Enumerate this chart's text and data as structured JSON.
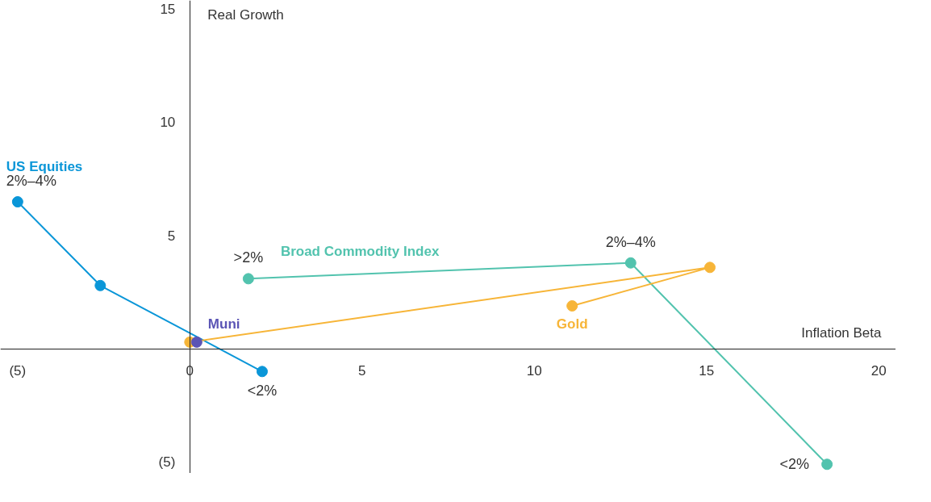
{
  "chart_data": {
    "type": "line",
    "xlabel": "Inflation Beta",
    "ylabel": "Real Growth",
    "marker": "circle",
    "xlim": [
      -5.5,
      20.5
    ],
    "ylim": [
      -5.5,
      15.4
    ],
    "xticks": [
      {
        "value": -5,
        "label": "(5)"
      },
      0,
      5,
      10,
      15,
      20
    ],
    "yticks": [
      {
        "value": -5,
        "label": "(5)"
      },
      5,
      10,
      15
    ],
    "series": [
      {
        "name": "US Equities",
        "color": "#0a96d8",
        "x": [
          -5,
          -2.6,
          2.1
        ],
        "values": [
          6.5,
          2.8,
          -1.0
        ]
      },
      {
        "name": "Broad Commodity Index",
        "color": "#52c3ae",
        "x": [
          18.5,
          12.8,
          1.7
        ],
        "values": [
          -5.1,
          3.8,
          3.1
        ]
      },
      {
        "name": "Gold",
        "color": "#f7b538",
        "x": [
          0,
          15.1,
          11.1
        ],
        "values": [
          0.3,
          3.6,
          1.9
        ]
      },
      {
        "name": "Muni",
        "color": "#5b55b5",
        "x": [
          0.2
        ],
        "values": [
          0.3
        ]
      }
    ],
    "annotations": [
      {
        "text": "2%–4%",
        "x": -5,
        "y": 6.5
      },
      {
        "text": "<2%",
        "x": 2.1,
        "y": -1.0
      },
      {
        "text": "<2%",
        "x": 18.5,
        "y": -5.1
      },
      {
        "text": "2%–4%",
        "x": 12.8,
        "y": 3.8
      },
      {
        "text": ">2%",
        "x": 1.7,
        "y": 3.1
      }
    ]
  }
}
